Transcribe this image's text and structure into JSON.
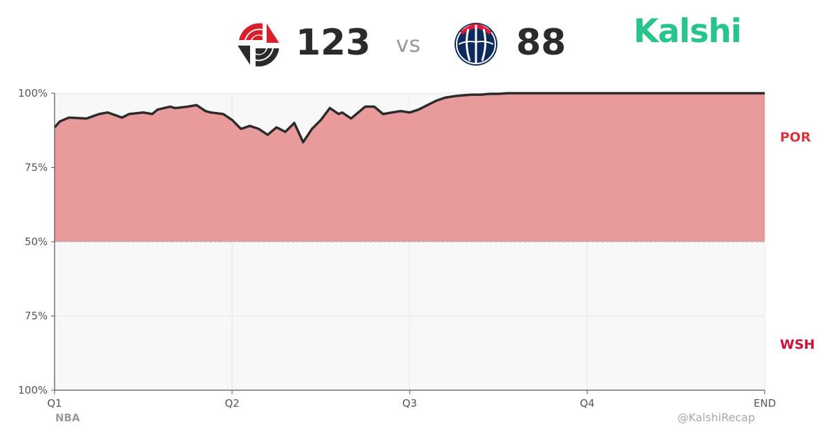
{
  "header": {
    "home_score": "123",
    "vs_label": "vs",
    "away_score": "88",
    "brand": "Kalshi",
    "brand_color": "#27c58a",
    "home_logo_icon": "trail-blazers-pinwheel-icon",
    "away_logo_icon": "wizards-ball-icon"
  },
  "teams": {
    "top": {
      "abbr": "POR",
      "color": "#d9363e"
    },
    "bottom": {
      "abbr": "WSH",
      "color": "#d0103a"
    }
  },
  "footer": {
    "league": "NBA",
    "handle": "@KalshiRecap"
  },
  "chart_data": {
    "type": "area",
    "y_tick_labels": [
      "100%",
      "75%",
      "50%",
      "75%",
      "100%"
    ],
    "x_tick_labels": [
      "Q1",
      "Q2",
      "Q3",
      "Q4",
      "END"
    ],
    "xlim": [
      0,
      4
    ],
    "ylim": [
      0,
      100
    ],
    "midline": 50,
    "grid": true,
    "fill_color": "#e99a9b",
    "line_color": "#2b2b2b",
    "series": [
      {
        "team": "POR",
        "x": [
          0,
          0.03,
          0.08,
          0.18,
          0.25,
          0.3,
          0.38,
          0.42,
          0.5,
          0.55,
          0.58,
          0.65,
          0.68,
          0.75,
          0.8,
          0.85,
          0.88,
          0.95,
          1.0,
          1.05,
          1.1,
          1.15,
          1.2,
          1.25,
          1.3,
          1.35,
          1.4,
          1.45,
          1.5,
          1.55,
          1.6,
          1.62,
          1.67,
          1.7,
          1.75,
          1.8,
          1.85,
          1.9,
          1.95,
          2.0,
          2.05,
          2.1,
          2.15,
          2.2,
          2.25,
          2.3,
          2.35,
          2.4,
          2.45,
          2.5,
          2.55,
          2.6,
          2.65,
          2.7,
          2.75,
          2.8,
          2.85,
          2.9,
          2.95,
          3.0,
          3.1,
          3.2,
          3.3,
          3.5,
          3.7,
          3.9,
          4.0
        ],
        "values": [
          88.5,
          90.5,
          91.8,
          91.5,
          93.0,
          93.5,
          91.8,
          93.0,
          93.5,
          93.0,
          94.5,
          95.5,
          95.0,
          95.5,
          96.0,
          94.0,
          93.5,
          93.0,
          91.0,
          88.0,
          89.0,
          88.0,
          86.0,
          88.5,
          87.0,
          90.0,
          83.5,
          88.0,
          91.0,
          95.0,
          93.0,
          93.5,
          91.5,
          93.0,
          95.5,
          95.5,
          93.0,
          93.5,
          94.0,
          93.5,
          94.5,
          96.0,
          97.5,
          98.5,
          99.0,
          99.3,
          99.5,
          99.5,
          99.8,
          99.8,
          100,
          100,
          100,
          100,
          100,
          100,
          100,
          100,
          100,
          100,
          100,
          100,
          100,
          100,
          100,
          100,
          100
        ]
      }
    ]
  }
}
